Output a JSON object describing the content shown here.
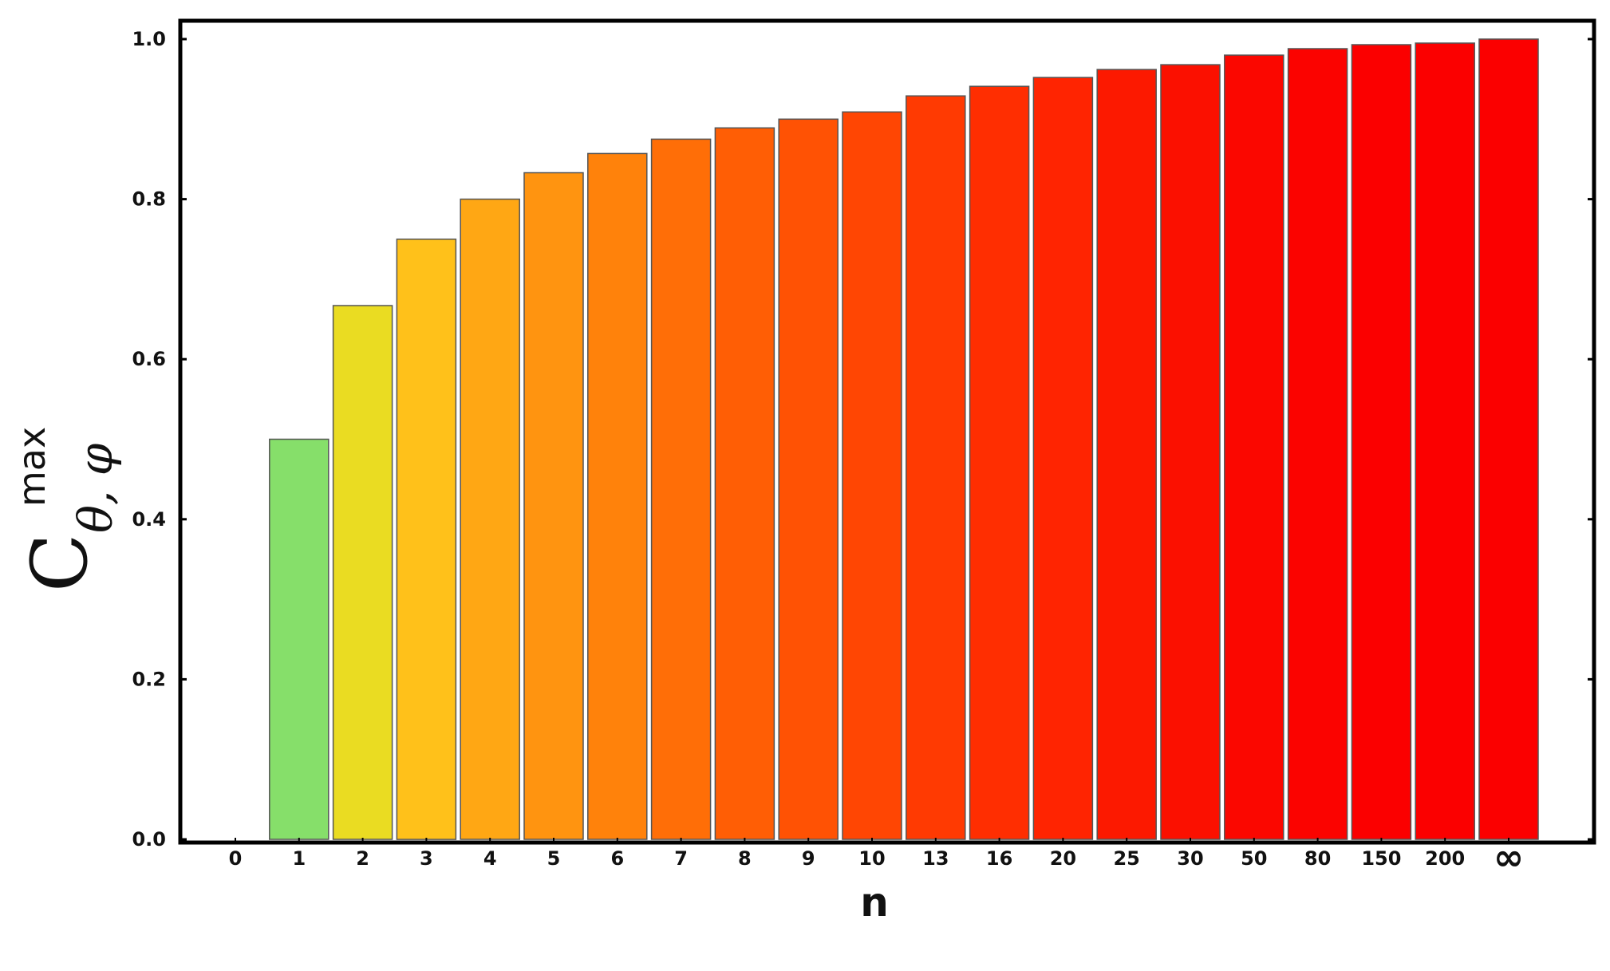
{
  "chart_data": {
    "type": "bar",
    "title": "",
    "xlabel": "n",
    "ylabel": {
      "base": "C",
      "superscript": "max",
      "subscript": "θ, φ"
    },
    "categories": [
      "0",
      "1",
      "2",
      "3",
      "4",
      "5",
      "6",
      "7",
      "8",
      "9",
      "10",
      "13",
      "16",
      "20",
      "25",
      "30",
      "50",
      "80",
      "150",
      "200",
      "∞"
    ],
    "values": [
      0.0,
      0.5,
      0.667,
      0.75,
      0.8,
      0.833,
      0.857,
      0.875,
      0.889,
      0.9,
      0.909,
      0.929,
      0.941,
      0.952,
      0.962,
      0.968,
      0.98,
      0.988,
      0.993,
      0.995,
      1.0
    ],
    "colors": [
      "#999999",
      "#86df6a",
      "#eadc22",
      "#ffc11a",
      "#ffa714",
      "#ff9410",
      "#ff820b",
      "#ff6e07",
      "#ff5e05",
      "#ff5204",
      "#ff4603",
      "#ff3a02",
      "#ff2e01",
      "#ff2401",
      "#fc1900",
      "#fb1000",
      "#fb0700",
      "#fb0300",
      "#fb0000",
      "#fb0000",
      "#fb0000"
    ],
    "ylim": [
      0.0,
      1.0
    ],
    "yticks": [
      "0.0",
      "0.2",
      "0.4",
      "0.6",
      "0.8",
      "1.0"
    ],
    "grid": false,
    "legend": "none"
  }
}
